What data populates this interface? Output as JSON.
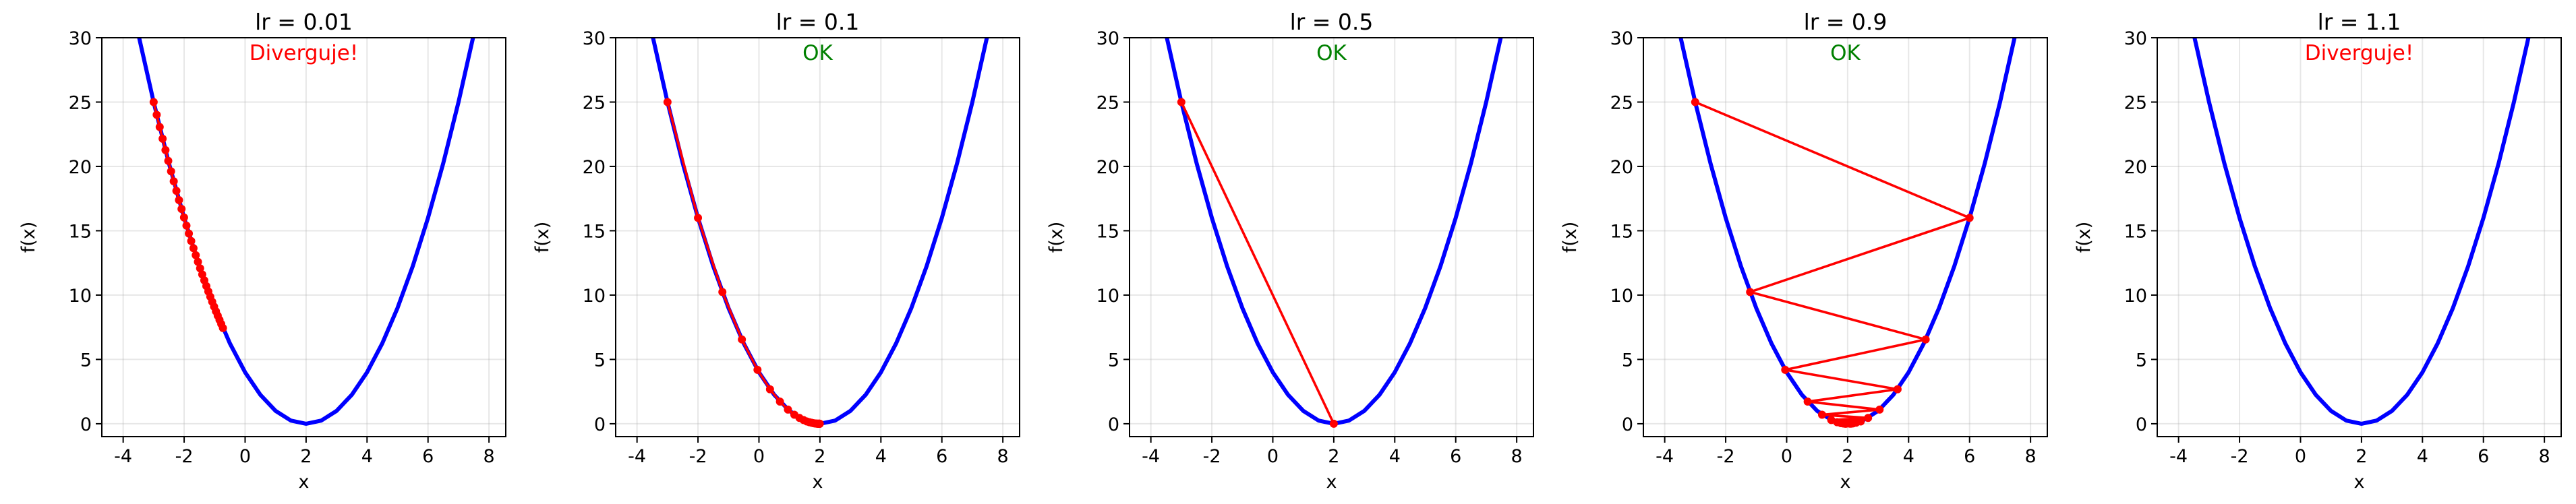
{
  "chart_data": [
    {
      "type": "line",
      "title": "lr = 0.01",
      "annotation": "Diverguje!",
      "annotation_color": "#ff0000",
      "x": [
        -3.5,
        -3,
        -2.5,
        -2,
        -1.5,
        -1,
        -0.5,
        0,
        0.5,
        1,
        1.5,
        2,
        2.5,
        3,
        3.5,
        4,
        4.5,
        5,
        5.5,
        6,
        6.5,
        7,
        7.5
      ],
      "values": [
        30.25,
        25,
        20.25,
        16,
        12.25,
        9,
        6.25,
        4,
        2.25,
        1,
        0.25,
        0,
        0.25,
        1,
        2.25,
        4,
        6.25,
        9,
        12.25,
        16,
        20.25,
        25,
        30.25
      ],
      "color": "#0000ff",
      "path_x": [
        -3,
        -2.9,
        -2.802,
        -2.706,
        -2.612,
        -2.52,
        -2.429,
        -2.341,
        -2.254,
        -2.169,
        -2.085,
        -2.004,
        -1.924,
        -1.845,
        -1.768,
        -1.693,
        -1.619,
        -1.547,
        -1.476,
        -1.406,
        -1.338,
        -1.271,
        -1.206,
        -1.142,
        -1.079,
        -1.017,
        -0.957,
        -0.898,
        -0.84,
        -0.783,
        -0.727
      ],
      "path_values": [
        25,
        24.01,
        23.06,
        22.15,
        21.27,
        20.43,
        19.62,
        18.84,
        18.1,
        17.38,
        16.69,
        16.03,
        15.4,
        14.78,
        14.2,
        13.64,
        13.1,
        12.58,
        12.08,
        11.6,
        11.14,
        10.7,
        10.28,
        9.87,
        9.48,
        9.1,
        8.74,
        8.4,
        8.07,
        7.75,
        7.44
      ],
      "path_color": "#ff0000",
      "xlabel": "x",
      "ylabel": "f(x)",
      "xlim": [
        -4.7,
        8.55
      ],
      "ylim": [
        -1,
        30
      ],
      "xticks": [
        -4,
        -2,
        0,
        2,
        4,
        6,
        8
      ],
      "yticks": [
        0,
        5,
        10,
        15,
        20,
        25,
        30
      ],
      "grid": true
    },
    {
      "type": "line",
      "title": "lr = 0.1",
      "annotation": "OK",
      "annotation_color": "#008000",
      "x": [
        -3.5,
        -3,
        -2.5,
        -2,
        -1.5,
        -1,
        -0.5,
        0,
        0.5,
        1,
        1.5,
        2,
        2.5,
        3,
        3.5,
        4,
        4.5,
        5,
        5.5,
        6,
        6.5,
        7,
        7.5
      ],
      "values": [
        30.25,
        25,
        20.25,
        16,
        12.25,
        9,
        6.25,
        4,
        2.25,
        1,
        0.25,
        0,
        0.25,
        1,
        2.25,
        4,
        6.25,
        9,
        12.25,
        16,
        20.25,
        25,
        30.25
      ],
      "color": "#0000ff",
      "path_x": [
        -3,
        -2,
        -1.2,
        -0.56,
        -0.048,
        0.362,
        0.689,
        0.951,
        1.161,
        1.329,
        1.463,
        1.571,
        1.656,
        1.725,
        1.78,
        1.824,
        1.859,
        1.887,
        1.91,
        1.928,
        1.942,
        1.954,
        1.963,
        1.97,
        1.976,
        1.981,
        1.985,
        1.988,
        1.99,
        1.992,
        1.994
      ],
      "path_values": [
        25,
        16,
        10.24,
        6.55,
        4.19,
        2.68,
        1.72,
        1.1,
        0.7,
        0.45,
        0.29,
        0.18,
        0.12,
        0.08,
        0.05,
        0.03,
        0.02,
        0.01,
        0.01,
        0.01,
        0,
        0,
        0,
        0,
        0,
        0,
        0,
        0,
        0,
        0,
        0
      ],
      "path_color": "#ff0000",
      "xlabel": "x",
      "ylabel": "f(x)",
      "xlim": [
        -4.7,
        8.55
      ],
      "ylim": [
        -1,
        30
      ],
      "xticks": [
        -4,
        -2,
        0,
        2,
        4,
        6,
        8
      ],
      "yticks": [
        0,
        5,
        10,
        15,
        20,
        25,
        30
      ],
      "grid": true
    },
    {
      "type": "line",
      "title": "lr = 0.5",
      "annotation": "OK",
      "annotation_color": "#008000",
      "x": [
        -3.5,
        -3,
        -2.5,
        -2,
        -1.5,
        -1,
        -0.5,
        0,
        0.5,
        1,
        1.5,
        2,
        2.5,
        3,
        3.5,
        4,
        4.5,
        5,
        5.5,
        6,
        6.5,
        7,
        7.5
      ],
      "values": [
        30.25,
        25,
        20.25,
        16,
        12.25,
        9,
        6.25,
        4,
        2.25,
        1,
        0.25,
        0,
        0.25,
        1,
        2.25,
        4,
        6.25,
        9,
        12.25,
        16,
        20.25,
        25,
        30.25
      ],
      "color": "#0000ff",
      "path_x": [
        -3,
        2
      ],
      "path_values": [
        25,
        0
      ],
      "path_color": "#ff0000",
      "xlabel": "x",
      "ylabel": "f(x)",
      "xlim": [
        -4.7,
        8.55
      ],
      "ylim": [
        -1,
        30
      ],
      "xticks": [
        -4,
        -2,
        0,
        2,
        4,
        6,
        8
      ],
      "yticks": [
        0,
        5,
        10,
        15,
        20,
        25,
        30
      ],
      "grid": true
    },
    {
      "type": "line",
      "title": "lr = 0.9",
      "annotation": "OK",
      "annotation_color": "#008000",
      "x": [
        -3.5,
        -3,
        -2.5,
        -2,
        -1.5,
        -1,
        -0.5,
        0,
        0.5,
        1,
        1.5,
        2,
        2.5,
        3,
        3.5,
        4,
        4.5,
        5,
        5.5,
        6,
        6.5,
        7,
        7.5
      ],
      "values": [
        30.25,
        25,
        20.25,
        16,
        12.25,
        9,
        6.25,
        4,
        2.25,
        1,
        0.25,
        0,
        0.25,
        1,
        2.25,
        4,
        6.25,
        9,
        12.25,
        16,
        20.25,
        25,
        30.25
      ],
      "color": "#0000ff",
      "path_x": [
        -3,
        6,
        -1.2,
        4.56,
        -0.048,
        3.638,
        0.689,
        3.049,
        1.161,
        2.671,
        1.463,
        2.429,
        1.656,
        2.275,
        1.78,
        2.176,
        1.859,
        2.113,
        1.91,
        2.072,
        1.942
      ],
      "path_values": [
        25,
        16,
        10.24,
        6.55,
        4.19,
        2.68,
        1.72,
        1.1,
        0.7,
        0.45,
        0.29,
        0.18,
        0.12,
        0.08,
        0.05,
        0.03,
        0.02,
        0.01,
        0.01,
        0.01,
        0
      ],
      "path_color": "#ff0000",
      "xlabel": "x",
      "ylabel": "f(x)",
      "xlim": [
        -4.7,
        8.55
      ],
      "ylim": [
        -1,
        30
      ],
      "xticks": [
        -4,
        -2,
        0,
        2,
        4,
        6,
        8
      ],
      "yticks": [
        0,
        5,
        10,
        15,
        20,
        25,
        30
      ],
      "grid": true
    },
    {
      "type": "line",
      "title": "lr = 1.1",
      "annotation": "Diverguje!",
      "annotation_color": "#ff0000",
      "x": [
        -3.5,
        -3,
        -2.5,
        -2,
        -1.5,
        -1,
        -0.5,
        0,
        0.5,
        1,
        1.5,
        2,
        2.5,
        3,
        3.5,
        4,
        4.5,
        5,
        5.5,
        6,
        6.5,
        7,
        7.5
      ],
      "values": [
        30.25,
        25,
        20.25,
        16,
        12.25,
        9,
        6.25,
        4,
        2.25,
        1,
        0.25,
        0,
        0.25,
        1,
        2.25,
        4,
        6.25,
        9,
        12.25,
        16,
        20.25,
        25,
        30.25
      ],
      "color": "#0000ff",
      "path_x": [],
      "path_values": [],
      "path_color": "#ff0000",
      "xlabel": "x",
      "ylabel": "f(x)",
      "xlim": [
        -4.7,
        8.55
      ],
      "ylim": [
        -1,
        30
      ],
      "xticks": [
        -4,
        -2,
        0,
        2,
        4,
        6,
        8
      ],
      "yticks": [
        0,
        5,
        10,
        15,
        20,
        25,
        30
      ],
      "grid": true
    }
  ]
}
